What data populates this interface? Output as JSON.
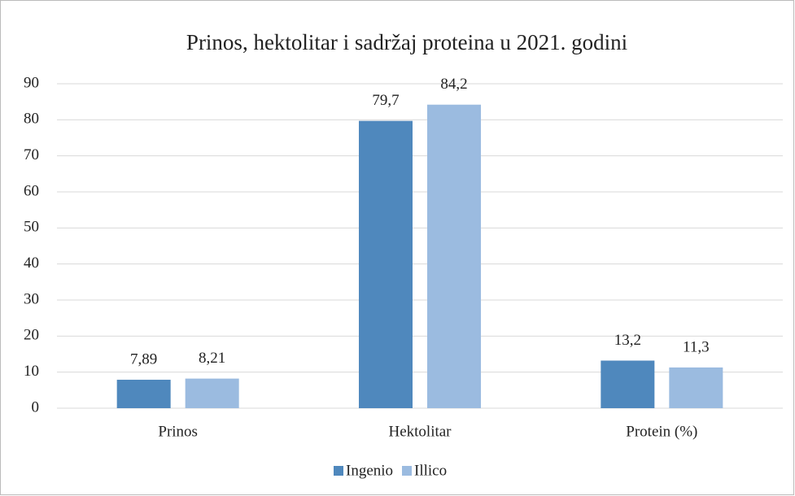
{
  "chart_data": {
    "type": "bar",
    "title": "Prinos, hektolitar i sadržaj proteina u 2021. godini",
    "categories": [
      "Prinos",
      "Hektolitar",
      "Protein (%)"
    ],
    "series": [
      {
        "name": "Ingenio",
        "color": "#4f88bd",
        "values": [
          7.89,
          79.7,
          13.2
        ],
        "value_labels": [
          "7,89",
          "79,7",
          "13,2"
        ]
      },
      {
        "name": "Illico",
        "color": "#9bbbe0",
        "values": [
          8.21,
          84.2,
          11.3
        ],
        "value_labels": [
          "8,21",
          "84,2",
          "11,3"
        ]
      }
    ],
    "ylim": [
      0,
      90
    ],
    "yticks": [
      0,
      10,
      20,
      30,
      40,
      50,
      60,
      70,
      80,
      90
    ],
    "grid": true,
    "legend": "bottom"
  }
}
